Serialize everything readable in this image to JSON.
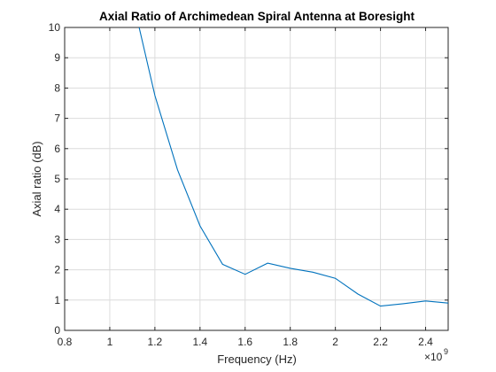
{
  "chart_data": {
    "type": "line",
    "title": "Axial Ratio of Archimedean Spiral Antenna at Boresight",
    "xlabel": "Frequency (Hz)",
    "ylabel": "Axial ratio (dB)",
    "x_exponent_label": "×10",
    "x_exponent_power": "9",
    "xlim": [
      0.8,
      2.5
    ],
    "ylim": [
      0,
      10
    ],
    "x_ticks": [
      0.8,
      1,
      1.2,
      1.4,
      1.6,
      1.8,
      2,
      2.2,
      2.4
    ],
    "x_tick_labels": [
      "0.8",
      "1",
      "1.2",
      "1.4",
      "1.6",
      "1.8",
      "2",
      "2.2",
      "2.4"
    ],
    "y_ticks": [
      0,
      1,
      2,
      3,
      4,
      5,
      6,
      7,
      8,
      9,
      10
    ],
    "y_tick_labels": [
      "0",
      "1",
      "2",
      "3",
      "4",
      "5",
      "6",
      "7",
      "8",
      "9",
      "10"
    ],
    "grid": true,
    "color": "#0072BD",
    "x": [
      1.13,
      1.2,
      1.3,
      1.4,
      1.5,
      1.6,
      1.7,
      1.8,
      1.9,
      2.0,
      2.1,
      2.2,
      2.3,
      2.4,
      2.5
    ],
    "y": [
      10.0,
      7.75,
      5.3,
      3.45,
      2.18,
      1.85,
      2.22,
      2.05,
      1.92,
      1.72,
      1.2,
      0.8,
      0.88,
      0.97,
      0.9
    ]
  }
}
